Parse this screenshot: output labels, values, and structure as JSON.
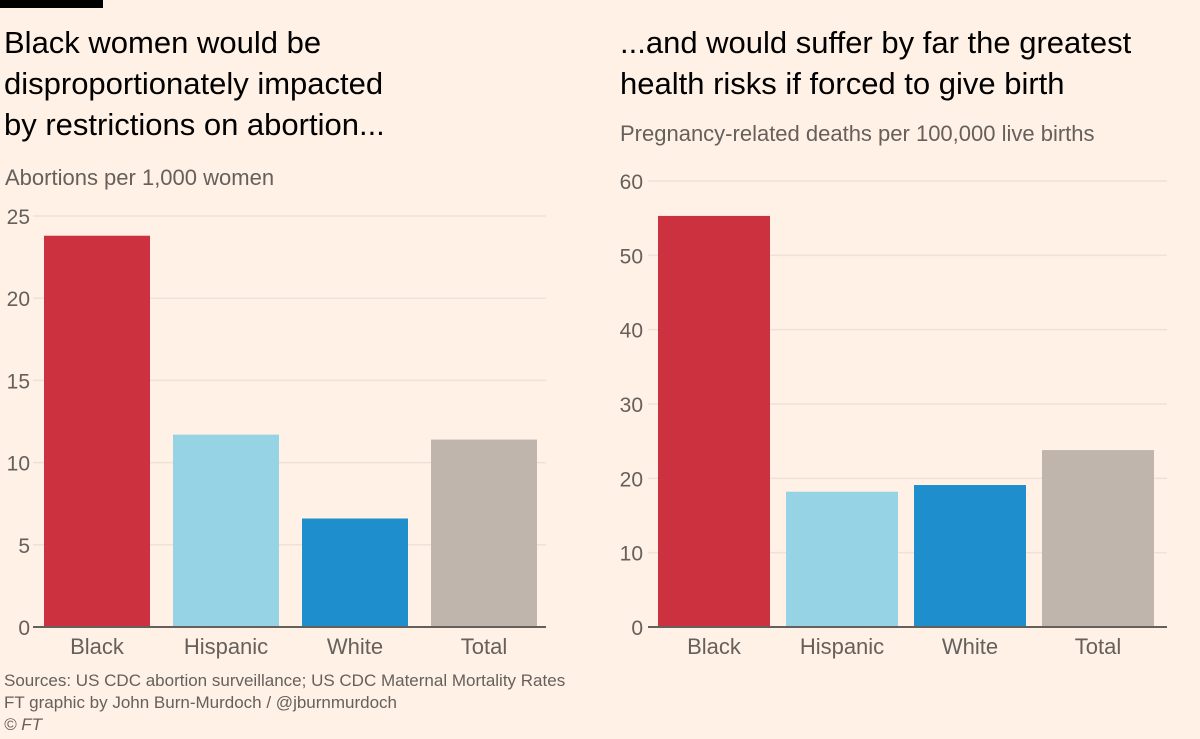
{
  "chart_data": [
    {
      "type": "bar",
      "title": "Black women would be disproportionately impacted by restrictions on abortion...",
      "title_lines": [
        "Black women would be",
        "disproportionately impacted",
        "by restrictions on abortion..."
      ],
      "subtitle": "Abortions per 1,000 women",
      "xlabel": "",
      "ylabel": "Abortions per 1,000 women",
      "categories": [
        "Black",
        "Hispanic",
        "White",
        "Total"
      ],
      "values": [
        23.8,
        11.7,
        6.6,
        11.4
      ],
      "colors": [
        "#cc3140",
        "#96d3e5",
        "#1f8ecd",
        "#bfb5ad"
      ],
      "ylim": [
        0,
        25
      ],
      "yticks": [
        0,
        5,
        10,
        15,
        20,
        25
      ],
      "grid": true
    },
    {
      "type": "bar",
      "title": "...and would suffer by far the greatest health risks if forced to give birth",
      "title_lines": [
        "...and would suffer by far the greatest",
        "health risks if forced to give birth"
      ],
      "subtitle": "Pregnancy-related deaths per 100,000 live births",
      "xlabel": "",
      "ylabel": "Pregnancy-related deaths per 100,000 live births",
      "categories": [
        "Black",
        "Hispanic",
        "White",
        "Total"
      ],
      "values": [
        55.3,
        18.2,
        19.1,
        23.8
      ],
      "colors": [
        "#cc3140",
        "#96d3e5",
        "#1f8ecd",
        "#bfb5ad"
      ],
      "ylim": [
        0,
        60
      ],
      "yticks": [
        0,
        10,
        20,
        30,
        40,
        50,
        60
      ],
      "grid": true
    }
  ],
  "footer": {
    "sources": "Sources: US CDC abortion surveillance; US CDC Maternal Mortality Rates",
    "credit": "FT graphic by John Burn-Murdoch / @jburnmurdoch",
    "copyright": "© FT"
  },
  "colors": {
    "background": "#fff1e5",
    "gridline": "#ece2da",
    "axis": "#66605c",
    "text_muted": "#66605c"
  }
}
